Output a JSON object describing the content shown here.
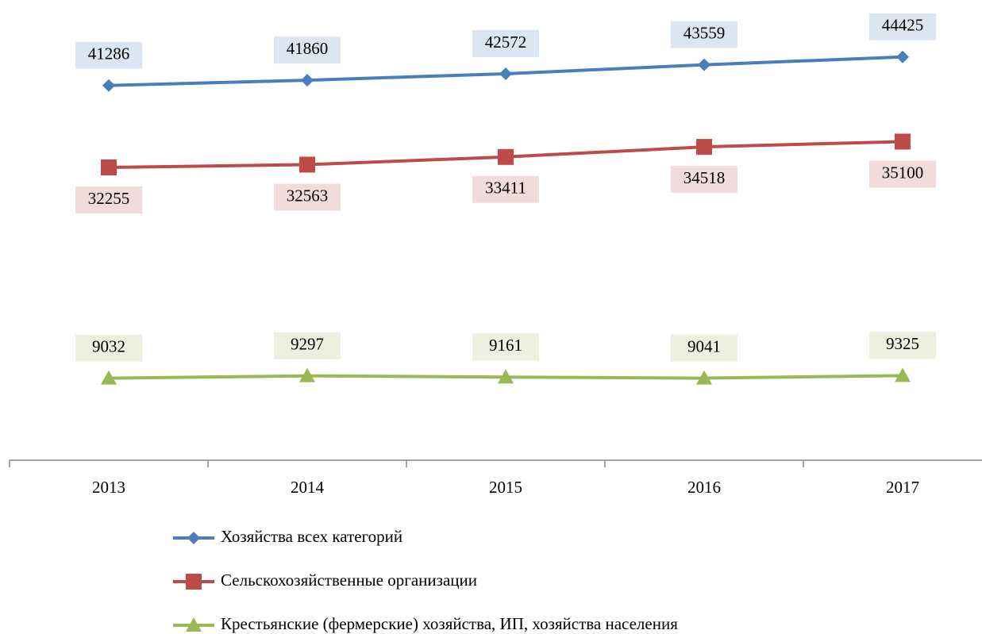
{
  "chart_data": {
    "type": "line",
    "categories": [
      "2013",
      "2014",
      "2015",
      "2016",
      "2017"
    ],
    "series": [
      {
        "name": "Хозяйства всех категорий",
        "color": "#4a7ebb",
        "marker": "diamond",
        "label_color": "#dce6f2",
        "label_position": "above",
        "values": [
          41286,
          41860,
          42572,
          43559,
          44425
        ]
      },
      {
        "name": "Сельскохозяйственные организации",
        "color": "#be4b48",
        "marker": "square",
        "label_color": "#f2dcdb",
        "label_position": "below",
        "values": [
          32255,
          32563,
          33411,
          34518,
          35100
        ]
      },
      {
        "name": "Крестьянские  (фермерские)  хозяйства, ИП, хозяйства населения",
        "color": "#98b954",
        "marker": "triangle",
        "label_color": "#ebf1de",
        "label_position": "above",
        "values": [
          9032,
          9297,
          9161,
          9041,
          9325
        ]
      }
    ],
    "ylim": [
      0,
      50000
    ],
    "legend": "bottom"
  }
}
